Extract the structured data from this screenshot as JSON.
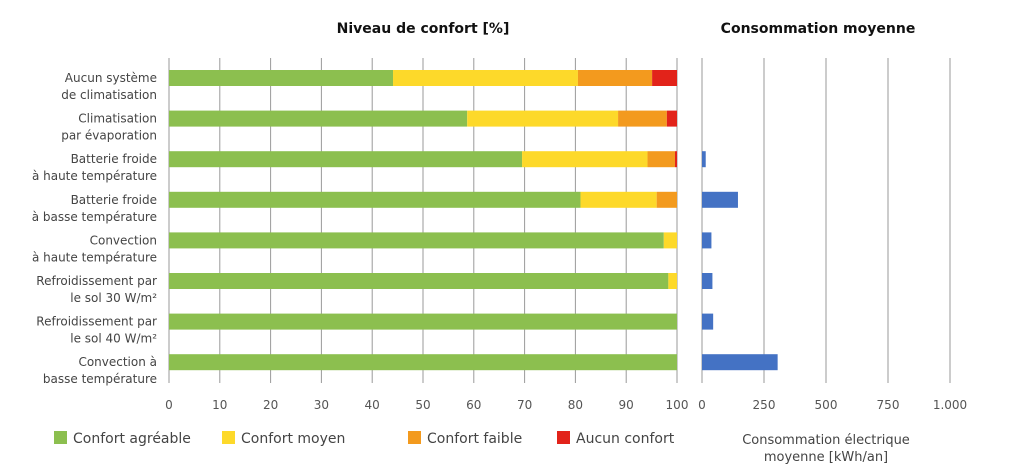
{
  "chart_data": [
    {
      "type": "bar",
      "orientation": "horizontal",
      "stacked": true,
      "title": "Niveau de confort [%]",
      "xlabel": "",
      "ylabel": "",
      "xlim": [
        0,
        100
      ],
      "xticks": [
        "0",
        "10",
        "20",
        "30",
        "40",
        "50",
        "60",
        "70",
        "80",
        "90",
        "100"
      ],
      "grid": true,
      "categories": [
        [
          "Aucun système",
          "de climatisation"
        ],
        [
          "Climatisation",
          "par évaporation"
        ],
        [
          "Batterie froide",
          "à haute température"
        ],
        [
          "Batterie froide",
          "à basse température"
        ],
        [
          "Convection",
          "à haute température"
        ],
        [
          "Refroidissement par",
          "le sol 30 W/m²"
        ],
        [
          "Refroidissement par",
          "le sol 40 W/m²"
        ],
        [
          "Convection à",
          "basse température"
        ]
      ],
      "series": [
        {
          "name": "Confort agréable",
          "color": "#8cbf4f",
          "values": [
            44.1,
            58.7,
            69.5,
            81.0,
            97.4,
            98.3,
            100,
            100
          ]
        },
        {
          "name": "Confort moyen",
          "color": "#fdd92a",
          "values": [
            36.4,
            29.7,
            24.7,
            15.0,
            2.6,
            1.7,
            0,
            0
          ]
        },
        {
          "name": "Confort faible",
          "color": "#f39a1e",
          "values": [
            14.6,
            9.6,
            5.4,
            4.0,
            0,
            0,
            0,
            0
          ]
        },
        {
          "name": "Aucun confort",
          "color": "#e2231a",
          "values": [
            4.9,
            2.0,
            0.4,
            0,
            0,
            0,
            0,
            0
          ]
        }
      ],
      "legend": "bottom"
    },
    {
      "type": "bar",
      "orientation": "horizontal",
      "title": "Consommation moyenne",
      "xlabel": [
        "Consommation électrique",
        "moyenne [kWh/an]"
      ],
      "xlim": [
        0,
        1000
      ],
      "xticks": [
        {
          "value": 0,
          "label": "0"
        },
        {
          "value": 250,
          "label": "250"
        },
        {
          "value": 500,
          "label": "500"
        },
        {
          "value": 750,
          "label": "750"
        },
        {
          "value": 1000,
          "label": "1.000"
        }
      ],
      "grid": true,
      "series": [
        {
          "name": "Consommation électrique moyenne",
          "color": "#4472c4",
          "values": [
            0,
            0,
            15,
            145,
            38,
            42,
            45,
            305
          ]
        }
      ]
    }
  ]
}
